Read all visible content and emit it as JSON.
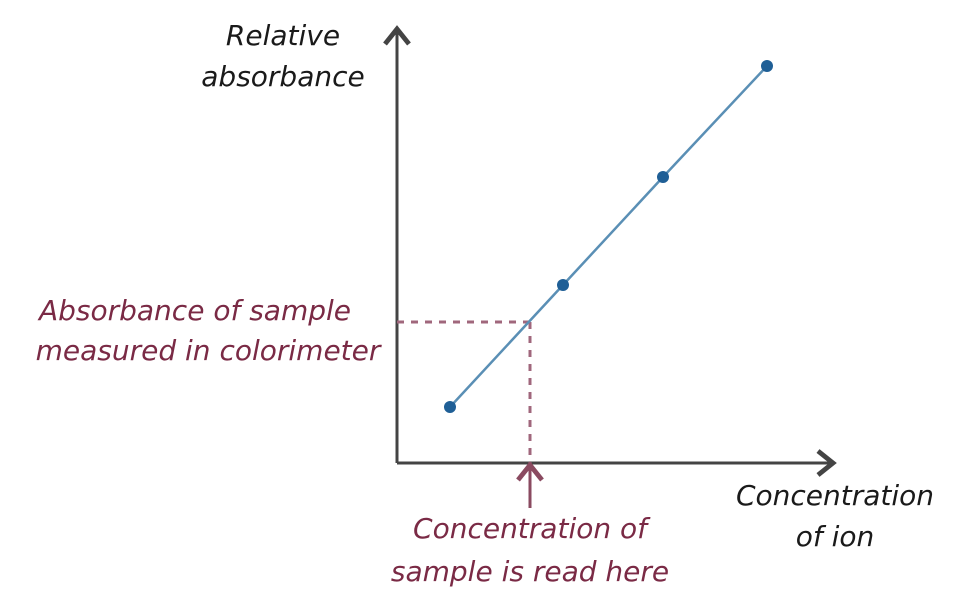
{
  "axes": {
    "y_label": [
      "Relative",
      "absorbance"
    ],
    "x_label": [
      "Concentration",
      "of ion"
    ]
  },
  "annotations": {
    "absorbance": [
      "Absorbance of sample",
      "measured in colorimeter"
    ],
    "concentration": [
      "Concentration of",
      "sample is read here"
    ]
  }
}
